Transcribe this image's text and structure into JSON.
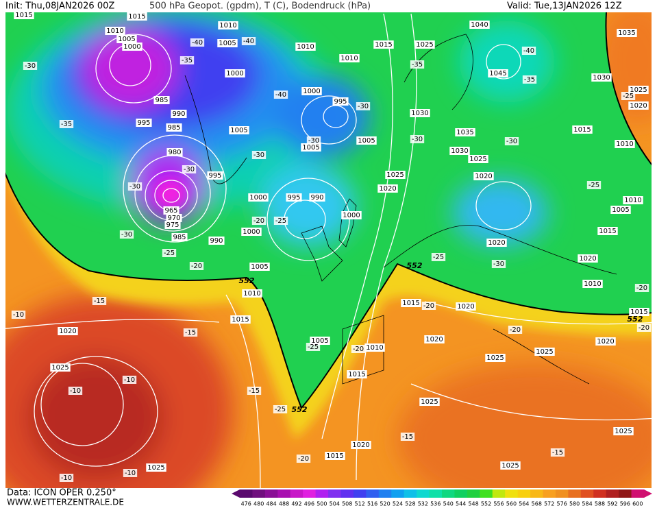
{
  "header": {
    "init": "Init: Thu,08JAN2026 00Z",
    "title": "500 hPa Geopot. (gpdm), T (C), Bodendruck (hPa)",
    "valid": "Valid: Tue,13JAN2026 12Z"
  },
  "footer": {
    "data_source": "Data: ICON OPER 0.250°",
    "website": "WWW.WETTERZENTRALE.DE"
  },
  "isobar_labels": [
    "1015",
    "1015",
    "1010",
    "1005",
    "1000",
    "1010",
    "1005",
    "1010",
    "1010",
    "1015",
    "1025",
    "1040",
    "1035",
    "1045",
    "1030",
    "1025",
    "1020",
    "1000",
    "1000",
    "995",
    "985",
    "990",
    "995",
    "985",
    "1005",
    "1005",
    "1005",
    "1030",
    "1035",
    "1030",
    "1025",
    "1015",
    "1010",
    "980",
    "995",
    "1025",
    "1020",
    "1020",
    "1000",
    "995",
    "990",
    "1000",
    "1000",
    "985",
    "975",
    "970",
    "965",
    "990",
    "1020",
    "1015",
    "1010",
    "1005",
    "1020",
    "1005",
    "1010",
    "1015",
    "1020",
    "1010",
    "1015",
    "1020",
    "1015",
    "1005",
    "1010",
    "1020",
    "1025",
    "1025",
    "1020",
    "1015",
    "1025",
    "1025",
    "1020",
    "1015",
    "1025",
    "1025",
    "1025"
  ],
  "temperature_labels": [
    "-40",
    "-40",
    "-35",
    "-30",
    "-35",
    "-40",
    "-30",
    "-30",
    "-35",
    "-40",
    "-35",
    "-25",
    "-30",
    "-30",
    "-30",
    "-30",
    "-30",
    "-30",
    "-25",
    "-20",
    "-25",
    "-30",
    "-25",
    "-25",
    "-20",
    "-15",
    "-10",
    "-15",
    "-20",
    "-20",
    "-25",
    "-20",
    "-20",
    "-15",
    "-10",
    "-10",
    "-25",
    "-15",
    "-15",
    "-20",
    "-10",
    "-10",
    "-20"
  ],
  "geopotential_552_labels": [
    "552",
    "552",
    "552",
    "552"
  ],
  "colorbar": {
    "labels": [
      "476",
      "480",
      "484",
      "488",
      "492",
      "496",
      "500",
      "504",
      "508",
      "512",
      "516",
      "520",
      "524",
      "528",
      "532",
      "536",
      "540",
      "544",
      "548",
      "552",
      "556",
      "560",
      "564",
      "568",
      "572",
      "576",
      "580",
      "584",
      "588",
      "592",
      "596",
      "600"
    ],
    "colors": [
      "#5a0a6e",
      "#70107e",
      "#8a1096",
      "#a810b0",
      "#c818c8",
      "#e020e0",
      "#b020f0",
      "#8030f0",
      "#6030f0",
      "#4040f0",
      "#3060f0",
      "#2080f0",
      "#10a0f0",
      "#10c0e8",
      "#10d8d0",
      "#10e0a8",
      "#10d880",
      "#10d060",
      "#20d040",
      "#40e020",
      "#c0e810",
      "#f0e010",
      "#f8d010",
      "#f8b818",
      "#f8a020",
      "#f09020",
      "#e87020",
      "#e05020",
      "#d03020",
      "#b02020",
      "#901818",
      "#d01070"
    ]
  }
}
